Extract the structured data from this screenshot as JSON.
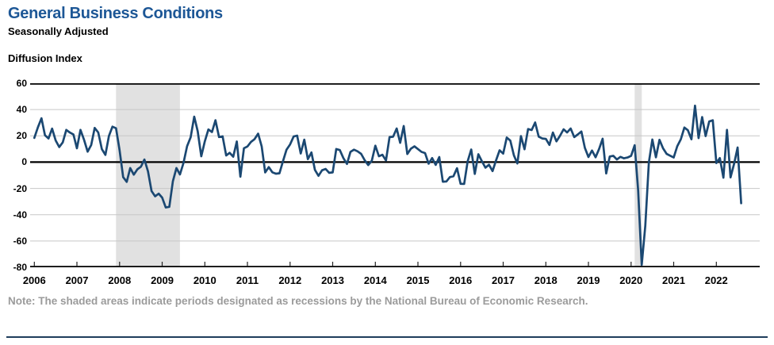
{
  "header": {
    "title": "General Business Conditions",
    "subtitle": "Seasonally Adjusted",
    "axis_title": "Diffusion Index"
  },
  "note": "Note: The shaded areas indicate periods designated as recessions by the National Bureau of Economic Research.",
  "colors": {
    "title_blue": "#1d5796",
    "line_navy": "#1b4872",
    "grid_gray": "#c7c7c7",
    "recession_gray": "#e1e1e1",
    "axis_black": "#000000",
    "note_gray": "#9b9b9b",
    "divider_navy": "#1f3d5c"
  },
  "chart_data": {
    "type": "line",
    "title": "General Business Conditions",
    "subtitle": "Seasonally Adjusted",
    "ylabel": "Diffusion Index",
    "frequency": "monthly",
    "x_start": "2006-01",
    "x_end": "2022-08",
    "ylim": [
      -80,
      60
    ],
    "yticks": [
      60,
      40,
      20,
      0,
      -20,
      -40,
      -60,
      -80
    ],
    "xticks": [
      2006,
      2007,
      2008,
      2009,
      2010,
      2011,
      2012,
      2013,
      2014,
      2015,
      2016,
      2017,
      2018,
      2019,
      2020,
      2021,
      2022
    ],
    "grid": true,
    "zero_line": true,
    "legend": "none",
    "recession_bands": [
      {
        "from": "2007-12",
        "to": "2009-06",
        "start_index": 23,
        "end_index": 41
      },
      {
        "from": "2020-02",
        "to": "2020-04",
        "start_index": 169,
        "end_index": 171
      }
    ],
    "series": [
      {
        "name": "General Business Conditions (Diffusion Index, Seasonally Adjusted)",
        "values": [
          18.5,
          26.5,
          33.4,
          20.5,
          18.0,
          25.5,
          16.5,
          11.5,
          15.0,
          24.5,
          22.5,
          21.0,
          10.5,
          24.5,
          17.0,
          8.0,
          13.0,
          26.0,
          22.5,
          10.0,
          5.5,
          20.0,
          27.0,
          25.8,
          9.0,
          -11.4,
          -15.0,
          -4.5,
          -9.5,
          -5.5,
          -3.5,
          2.0,
          -7.0,
          -22.0,
          -26.0,
          -24.0,
          -27.0,
          -34.5,
          -34.0,
          -14.5,
          -4.5,
          -9.4,
          -0.6,
          12.1,
          18.9,
          34.6,
          23.5,
          4.5,
          15.9,
          24.9,
          22.9,
          31.9,
          19.1,
          19.6,
          5.1,
          7.1,
          4.1,
          15.7,
          -11.1,
          10.6,
          11.9,
          15.4,
          17.5,
          21.7,
          11.9,
          -7.8,
          -3.8,
          -7.7,
          -8.8,
          -8.5,
          0.6,
          9.5,
          13.5,
          19.5,
          20.2,
          6.6,
          17.1,
          2.3,
          7.4,
          -5.9,
          -10.4,
          -6.2,
          -5.2,
          -8.1,
          -7.8,
          10.0,
          9.2,
          3.1,
          -1.4,
          7.8,
          9.5,
          8.2,
          6.3,
          1.5,
          -2.2,
          1.0,
          12.5,
          4.5,
          5.6,
          1.3,
          19.0,
          19.3,
          25.6,
          14.7,
          27.5,
          6.2,
          10.2,
          12.0,
          10.0,
          7.8,
          6.9,
          -1.2,
          3.1,
          -2.1,
          3.9,
          -14.9,
          -14.7,
          -11.4,
          -10.7,
          -4.6,
          -16.5,
          -16.6,
          0.6,
          9.6,
          -9.0,
          6.0,
          0.6,
          -4.2,
          -2.0,
          -6.8,
          1.5,
          9.0,
          6.5,
          18.7,
          16.4,
          5.2,
          -1.0,
          19.8,
          9.8,
          25.2,
          24.4,
          30.2,
          19.4,
          18.0,
          17.7,
          13.1,
          22.5,
          15.8,
          20.1,
          25.0,
          22.6,
          25.6,
          19.0,
          21.1,
          23.3,
          10.9,
          3.9,
          8.8,
          3.7,
          10.1,
          17.8,
          -8.6,
          4.3,
          4.8,
          2.0,
          4.0,
          2.9,
          3.5,
          4.8,
          12.9,
          -21.5,
          -78.2,
          -48.5,
          -0.2,
          17.2,
          3.7,
          17.0,
          10.5,
          6.3,
          4.9,
          3.5,
          12.1,
          17.4,
          26.3,
          24.3,
          17.4,
          43.0,
          18.3,
          34.3,
          19.8,
          30.9,
          31.9,
          -0.7,
          3.1,
          -11.8,
          24.6,
          -11.6,
          -1.2,
          11.1,
          -31.3
        ]
      }
    ]
  }
}
